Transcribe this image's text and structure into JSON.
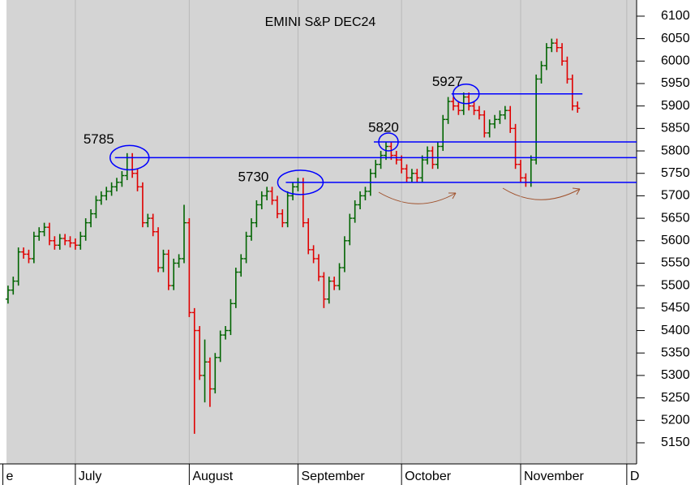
{
  "chart_data": {
    "type": "ohlc",
    "title": "EMINI S&P DEC24",
    "x": [
      0,
      1,
      2,
      3,
      4,
      5,
      6,
      7,
      8,
      9,
      10,
      11,
      12,
      13,
      14,
      15,
      16,
      17,
      18,
      19,
      20,
      21,
      22,
      23,
      24,
      25,
      26,
      27,
      28,
      29,
      30,
      31,
      32,
      33,
      34,
      35,
      36,
      37,
      38,
      39,
      40,
      41,
      42,
      43,
      44,
      45,
      46,
      47,
      48,
      49,
      50,
      51,
      52,
      53,
      54,
      55,
      56,
      57,
      58,
      59,
      60,
      61,
      62,
      63,
      64,
      65,
      66,
      67,
      68,
      69,
      70,
      71,
      72,
      73,
      74,
      75,
      76,
      77,
      78,
      79,
      80,
      81,
      82,
      83,
      84,
      85,
      86,
      87,
      88,
      89,
      90,
      91,
      92,
      93,
      94,
      95,
      96,
      97,
      98,
      99,
      100,
      101,
      102,
      103,
      104,
      105,
      106,
      107,
      108,
      109,
      110
    ],
    "open": [
      5470,
      5490,
      5510,
      5575,
      5570,
      5560,
      5610,
      5620,
      5630,
      5600,
      5590,
      5605,
      5600,
      5595,
      5590,
      5610,
      5640,
      5660,
      5690,
      5700,
      5710,
      5720,
      5730,
      5745,
      5785,
      5750,
      5720,
      5640,
      5650,
      5620,
      5540,
      5570,
      5500,
      5550,
      5560,
      5640,
      5440,
      5400,
      5300,
      5330,
      5270,
      5340,
      5390,
      5400,
      5460,
      5530,
      5560,
      5610,
      5640,
      5680,
      5700,
      5710,
      5690,
      5660,
      5640,
      5700,
      5720,
      5730,
      5640,
      5580,
      5560,
      5520,
      5470,
      5510,
      5500,
      5540,
      5600,
      5650,
      5680,
      5700,
      5710,
      5750,
      5770,
      5790,
      5810,
      5790,
      5780,
      5760,
      5740,
      5750,
      5740,
      5780,
      5800,
      5770,
      5810,
      5870,
      5910,
      5900,
      5890,
      5920,
      5900,
      5890,
      5880,
      5840,
      5860,
      5870,
      5880,
      5890,
      5850,
      5770,
      5740,
      5730,
      5780,
      5960,
      5990,
      6030,
      6040,
      6030,
      6000,
      5960,
      5900
    ],
    "high": [
      5500,
      5520,
      5585,
      5585,
      5580,
      5620,
      5630,
      5640,
      5640,
      5610,
      5615,
      5615,
      5610,
      5605,
      5620,
      5650,
      5670,
      5700,
      5710,
      5720,
      5730,
      5740,
      5755,
      5795,
      5795,
      5760,
      5730,
      5660,
      5660,
      5630,
      5580,
      5580,
      5560,
      5570,
      5680,
      5650,
      5450,
      5410,
      5380,
      5340,
      5350,
      5400,
      5410,
      5470,
      5540,
      5570,
      5620,
      5650,
      5690,
      5710,
      5720,
      5720,
      5700,
      5670,
      5710,
      5730,
      5740,
      5740,
      5650,
      5590,
      5570,
      5530,
      5520,
      5520,
      5550,
      5610,
      5660,
      5690,
      5710,
      5720,
      5760,
      5780,
      5800,
      5820,
      5820,
      5800,
      5790,
      5770,
      5760,
      5760,
      5790,
      5810,
      5810,
      5820,
      5880,
      5920,
      5920,
      5910,
      5930,
      5930,
      5910,
      5900,
      5890,
      5870,
      5880,
      5890,
      5900,
      5900,
      5860,
      5780,
      5750,
      5790,
      5970,
      6000,
      6040,
      6050,
      6050,
      6040,
      6010,
      5970,
      5910
    ],
    "low": [
      5460,
      5480,
      5500,
      5560,
      5550,
      5550,
      5600,
      5610,
      5590,
      5580,
      5580,
      5590,
      5585,
      5580,
      5580,
      5600,
      5630,
      5650,
      5680,
      5690,
      5700,
      5710,
      5720,
      5735,
      5740,
      5710,
      5630,
      5630,
      5610,
      5530,
      5530,
      5490,
      5490,
      5540,
      5550,
      5430,
      5170,
      5290,
      5240,
      5230,
      5260,
      5330,
      5380,
      5390,
      5450,
      5520,
      5550,
      5600,
      5630,
      5670,
      5690,
      5680,
      5650,
      5630,
      5630,
      5690,
      5710,
      5630,
      5570,
      5550,
      5510,
      5450,
      5460,
      5490,
      5490,
      5530,
      5590,
      5640,
      5670,
      5690,
      5700,
      5740,
      5760,
      5780,
      5780,
      5770,
      5750,
      5730,
      5730,
      5730,
      5730,
      5770,
      5760,
      5760,
      5800,
      5860,
      5890,
      5880,
      5880,
      5890,
      5880,
      5870,
      5830,
      5830,
      5850,
      5860,
      5870,
      5840,
      5760,
      5730,
      5720,
      5720,
      5770,
      5950,
      5980,
      6020,
      6020,
      5990,
      5950,
      5890,
      5885
    ],
    "close": [
      5490,
      5510,
      5575,
      5570,
      5560,
      5610,
      5620,
      5630,
      5600,
      5590,
      5605,
      5600,
      5595,
      5590,
      5610,
      5640,
      5660,
      5690,
      5700,
      5710,
      5720,
      5730,
      5745,
      5785,
      5750,
      5720,
      5640,
      5650,
      5620,
      5540,
      5570,
      5500,
      5550,
      5560,
      5640,
      5440,
      5400,
      5300,
      5330,
      5270,
      5340,
      5390,
      5400,
      5460,
      5530,
      5560,
      5610,
      5640,
      5680,
      5700,
      5710,
      5690,
      5660,
      5640,
      5700,
      5720,
      5730,
      5640,
      5580,
      5560,
      5520,
      5470,
      5510,
      5500,
      5540,
      5600,
      5650,
      5680,
      5700,
      5710,
      5750,
      5770,
      5790,
      5810,
      5790,
      5780,
      5760,
      5740,
      5750,
      5740,
      5780,
      5800,
      5770,
      5810,
      5870,
      5910,
      5900,
      5890,
      5920,
      5900,
      5890,
      5880,
      5840,
      5860,
      5870,
      5880,
      5890,
      5850,
      5770,
      5740,
      5730,
      5780,
      5960,
      5990,
      6030,
      6040,
      6030,
      6000,
      5960,
      5900,
      5895
    ],
    "up_color": "#006400",
    "down_color": "#e00000",
    "xlim": [
      -0.3,
      121.4
    ],
    "xticks": [
      {
        "value": -1,
        "label": "e"
      },
      {
        "value": 13,
        "label": "July"
      },
      {
        "value": 35,
        "label": "August"
      },
      {
        "value": 56,
        "label": "September"
      },
      {
        "value": 76,
        "label": "October"
      },
      {
        "value": 99,
        "label": "November"
      },
      {
        "value": 119.5,
        "label": "D"
      }
    ],
    "ylim": [
      5103,
      6136
    ],
    "yticks": [
      5150,
      5200,
      5250,
      5300,
      5350,
      5400,
      5450,
      5500,
      5550,
      5600,
      5650,
      5700,
      5750,
      5800,
      5850,
      5900,
      5950,
      6000,
      6050,
      6100
    ],
    "grid": true,
    "annotations": [
      {
        "text": "5785",
        "value": 5785,
        "x_start": 23,
        "color": "#0000ff"
      },
      {
        "text": "5730",
        "value": 5730,
        "x_start": 56,
        "color": "#0000ff"
      },
      {
        "text": "5820",
        "value": 5820,
        "x_start": 73,
        "color": "#0000ff"
      },
      {
        "text": "5927",
        "value": 5927,
        "x_start": 88,
        "x_end": 110,
        "color": "#0000ff"
      }
    ]
  }
}
